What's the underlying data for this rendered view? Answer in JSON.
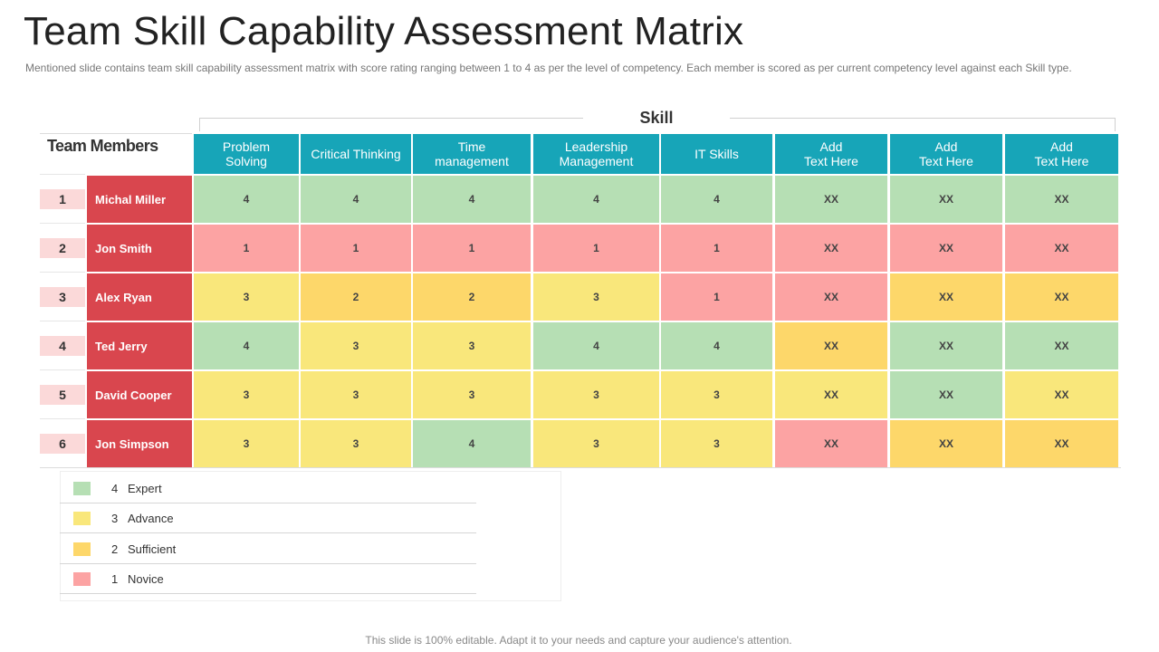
{
  "title": "Team Skill Capability Assessment Matrix",
  "subtitle": "Mentioned slide contains team skill capability assessment matrix with score rating ranging between 1 to 4 as per the level of competency. Each member is scored as per current competency level against each Skill type.",
  "skill_label": "Skill",
  "team_members_label": "Team Members",
  "skills": [
    "Problem\nSolving",
    "Critical Thinking",
    "Time\nmanagement",
    "Leadership\nManagement",
    "IT Skills",
    "Add\nText Here",
    "Add\nText Here",
    "Add\nText Here"
  ],
  "members": [
    {
      "number": "1",
      "name": "Michal Miller",
      "scores": [
        "4",
        "4",
        "4",
        "4",
        "4",
        "XX",
        "XX",
        "XX"
      ],
      "levels": [
        4,
        4,
        4,
        4,
        4,
        4,
        4,
        4
      ]
    },
    {
      "number": "2",
      "name": "Jon Smith",
      "scores": [
        "1",
        "1",
        "1",
        "1",
        "1",
        "XX",
        "XX",
        "XX"
      ],
      "levels": [
        1,
        1,
        1,
        1,
        1,
        1,
        1,
        1
      ]
    },
    {
      "number": "3",
      "name": "Alex Ryan",
      "scores": [
        "3",
        "2",
        "2",
        "3",
        "1",
        "XX",
        "XX",
        "XX"
      ],
      "levels": [
        3,
        2,
        2,
        3,
        1,
        1,
        2,
        2
      ]
    },
    {
      "number": "4",
      "name": "Ted Jerry",
      "scores": [
        "4",
        "3",
        "3",
        "4",
        "4",
        "XX",
        "XX",
        "XX"
      ],
      "levels": [
        4,
        3,
        3,
        4,
        4,
        2,
        4,
        4
      ]
    },
    {
      "number": "5",
      "name": "David Cooper",
      "scores": [
        "3",
        "3",
        "3",
        "3",
        "3",
        "XX",
        "XX",
        "XX"
      ],
      "levels": [
        3,
        3,
        3,
        3,
        3,
        3,
        4,
        3
      ]
    },
    {
      "number": "6",
      "name": "Jon Simpson",
      "scores": [
        "3",
        "3",
        "4",
        "3",
        "3",
        "XX",
        "XX",
        "XX"
      ],
      "levels": [
        3,
        3,
        4,
        3,
        3,
        1,
        2,
        2
      ]
    }
  ],
  "level_colors": {
    "4": "#b6dfb4",
    "3": "#f9e77b",
    "2": "#fdd76a",
    "1": "#fca3a3"
  },
  "colors": {
    "header": "#17a5b8",
    "name_cell": "#d9464e",
    "number_cell": "#fbd9d9"
  },
  "legend": [
    {
      "level": "4",
      "label": "Expert",
      "color": "#b6dfb4"
    },
    {
      "level": "3",
      "label": "Advance",
      "color": "#f9e77b"
    },
    {
      "level": "2",
      "label": "Sufficient",
      "color": "#fdd76a"
    },
    {
      "level": "1",
      "label": "Novice",
      "color": "#fca3a3"
    }
  ],
  "footer": "This slide is 100% editable. Adapt it to your needs and capture your audience's attention."
}
